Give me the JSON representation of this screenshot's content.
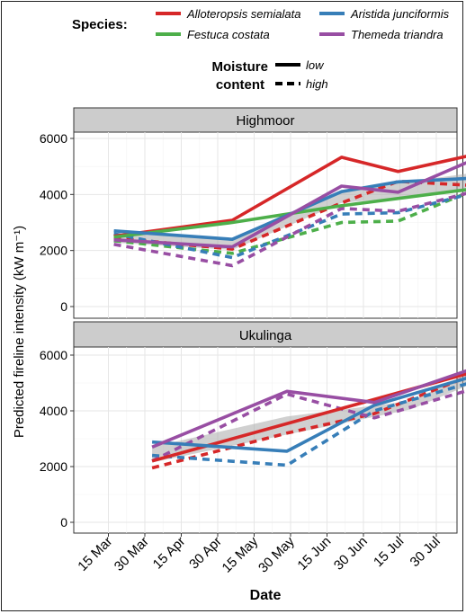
{
  "legend": {
    "species_title": "Species:",
    "moisture_title_1": "Moisture",
    "moisture_title_2": "content",
    "moisture_low": "low",
    "moisture_high": "high"
  },
  "chart_data": {
    "type": "line",
    "xlabel": "Date",
    "ylabel": "Predicted fireline intensity (kW m⁻¹)",
    "ylim": [
      0,
      6000
    ],
    "y_ticks": [
      0,
      2000,
      4000,
      6000
    ],
    "x_categories": [
      "15 Mar",
      "30 Mar",
      "15 Apr",
      "30 Apr",
      "15 May",
      "30 May",
      "15 Jun",
      "30 Jun",
      "15 Jul",
      "30 Jul"
    ],
    "x_tick_labels": [
      "15 Mar",
      "30 Mar",
      "15 Apr",
      "30 Apr",
      "15 May",
      "30 May",
      "15 Jun",
      "30 Jun",
      "15 Jul",
      "30 Jul"
    ],
    "grid": true,
    "legend_position": "top",
    "species": [
      {
        "name": "Alloteropsis semialata",
        "color": "#d62728"
      },
      {
        "name": "Festuca costata",
        "color": "#4daf4a"
      },
      {
        "name": "Aristida junciformis",
        "color": "#377eb8"
      },
      {
        "name": "Themeda triandra",
        "color": "#984ea3"
      }
    ],
    "panels": [
      {
        "name": "Highmoor",
        "band": {
          "x": [
            0.15,
            3.4,
            6.4,
            10.3
          ],
          "lower": [
            2280,
            2020,
            3700,
            4150
          ],
          "upper": [
            2620,
            2420,
            4150,
            4820
          ]
        },
        "series": [
          {
            "species": "Alloteropsis semialata",
            "moisture": "low",
            "x": [
              0.15,
              3.4,
              6.4,
              7.95,
              10.3
            ],
            "y": [
              2510,
              3080,
              5330,
              4820,
              5500
            ]
          },
          {
            "species": "Festuca costata",
            "moisture": "low",
            "x": [
              0.15,
              3.4,
              6.4,
              10.3
            ],
            "y": [
              2480,
              3000,
              3600,
              4250
            ]
          },
          {
            "species": "Aristida junciformis",
            "moisture": "low",
            "x": [
              0.15,
              3.4,
              6.4,
              7.95,
              10.3
            ],
            "y": [
              2700,
              2400,
              4100,
              4450,
              4600
            ]
          },
          {
            "species": "Themeda triandra",
            "moisture": "low",
            "x": [
              0.15,
              3.4,
              6.4,
              7.95,
              10.3
            ],
            "y": [
              2380,
              2130,
              4300,
              4080,
              5400
            ]
          },
          {
            "species": "Alloteropsis semialata",
            "moisture": "high",
            "x": [
              0.15,
              3.4,
              6.4,
              7.95,
              10.3
            ],
            "y": [
              2450,
              2050,
              3700,
              4470,
              4300
            ]
          },
          {
            "species": "Festuca costata",
            "moisture": "high",
            "x": [
              0.15,
              3.4,
              6.4,
              7.95,
              10.3
            ],
            "y": [
              2350,
              1900,
              3000,
              3050,
              4300
            ]
          },
          {
            "species": "Aristida junciformis",
            "moisture": "high",
            "x": [
              0.15,
              3.4,
              6.4,
              7.95,
              10.3
            ],
            "y": [
              2600,
              1750,
              3300,
              3350,
              4150
            ]
          },
          {
            "species": "Themeda triandra",
            "moisture": "high",
            "x": [
              0.15,
              3.4,
              6.4,
              7.95,
              10.3
            ],
            "y": [
              2220,
              1460,
              3500,
              3400,
              4200
            ]
          }
        ]
      },
      {
        "name": "Ukulinga",
        "band": {
          "x": [
            1.2,
            4.9,
            8.3,
            10.3
          ],
          "lower": [
            2150,
            3150,
            4050,
            5150
          ],
          "upper": [
            2700,
            3800,
            4350,
            5600
          ]
        },
        "series": [
          {
            "species": "Alloteropsis semialata",
            "moisture": "low",
            "x": [
              1.2,
              10.3
            ],
            "y": [
              2200,
              5500
            ]
          },
          {
            "species": "Aristida junciformis",
            "moisture": "low",
            "x": [
              1.2,
              4.9,
              7.3,
              10.3
            ],
            "y": [
              2880,
              2550,
              4200,
              5350
            ]
          },
          {
            "species": "Themeda triandra",
            "moisture": "low",
            "x": [
              1.2,
              4.9,
              7.3,
              10.3
            ],
            "y": [
              2700,
              4700,
              4300,
              5650
            ]
          },
          {
            "species": "Alloteropsis semialata",
            "moisture": "high",
            "x": [
              1.2,
              4.9,
              7.3,
              10.3
            ],
            "y": [
              1950,
              3200,
              3900,
              5450
            ]
          },
          {
            "species": "Aristida junciformis",
            "moisture": "high",
            "x": [
              1.2,
              4.9,
              7.3,
              10.3
            ],
            "y": [
              2400,
              2050,
              4000,
              5150
            ]
          },
          {
            "species": "Themeda triandra",
            "moisture": "high",
            "x": [
              1.2,
              4.9,
              7.3,
              10.3
            ],
            "y": [
              2200,
              4600,
              3750,
              4900
            ]
          }
        ]
      }
    ]
  }
}
